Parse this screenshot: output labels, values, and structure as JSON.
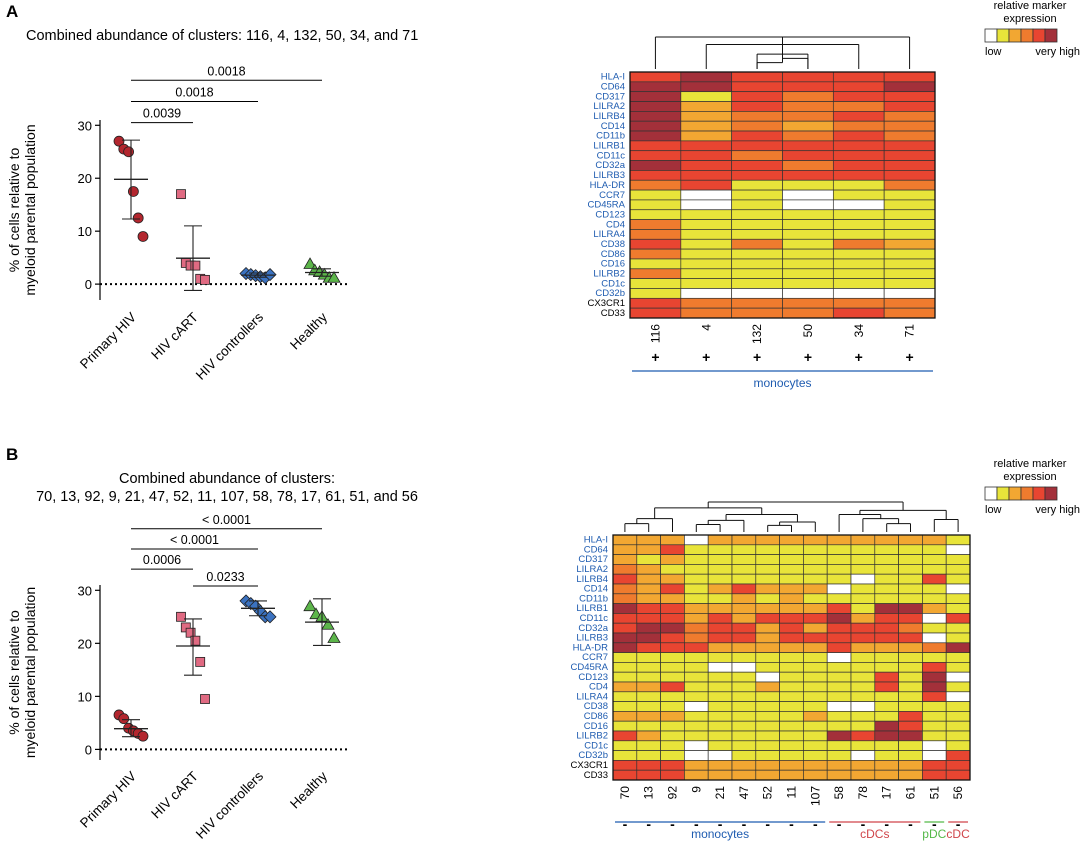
{
  "colors": {
    "palette": [
      "#ffffff",
      "#e8e43a",
      "#f2a732",
      "#ef7b2e",
      "#e84531",
      "#a3303a"
    ],
    "primary": "#b3262e",
    "cart": "#e06a82",
    "controllers": "#3b72c0",
    "healthy": "#5cb54a",
    "marker_blue": "#1f5cb0",
    "monocytes": "#1f5cb0",
    "cdc": "#d0454a",
    "pdc": "#54b948"
  },
  "legend": {
    "title_line1": "relative marker",
    "title_line2": "expression",
    "low": "low",
    "high": "very high"
  },
  "chart_data": [
    {
      "panel": "A",
      "type": "scatter",
      "title": "Combined abundance of clusters: 116, 4, 132, 50, 34, and 71",
      "ylabel_line1": "% of cells relative to",
      "ylabel_line2": "myeloid parental population",
      "ylim": [
        -3,
        31
      ],
      "yticks": [
        0,
        10,
        20,
        30
      ],
      "groups": [
        {
          "name": "Primary HIV",
          "marker": "circle",
          "color_key": "primary",
          "values": [
            27.0,
            25.5,
            25.0,
            17.5,
            12.5,
            9.0
          ],
          "mean": 19.8,
          "sd_low": 12.3,
          "sd_high": 27.2
        },
        {
          "name": "HIV cART",
          "marker": "square",
          "color_key": "cart",
          "values": [
            17.0,
            4.0,
            3.5,
            3.5,
            1.0,
            0.8
          ],
          "mean": 4.9,
          "sd_low": -1.2,
          "sd_high": 11.0
        },
        {
          "name": "HIV controllers",
          "marker": "diamond",
          "color_key": "controllers",
          "values": [
            2.0,
            1.8,
            1.6,
            1.4,
            1.2,
            1.8
          ],
          "mean": 1.7,
          "sd_low": 1.3,
          "sd_high": 2.1
        },
        {
          "name": "Healthy",
          "marker": "triangle",
          "color_key": "healthy",
          "values": [
            3.8,
            2.6,
            2.3,
            1.8,
            1.2,
            1.2
          ],
          "mean": 2.2,
          "sd_low": 1.5,
          "sd_high": 2.9
        }
      ],
      "comparisons": [
        {
          "from": 0,
          "to": 1,
          "p": "0.0039",
          "y": 30.5
        },
        {
          "from": 0,
          "to": 2,
          "p": "0.0018",
          "y": 34.5
        },
        {
          "from": 0,
          "to": 3,
          "p": "0.0018",
          "y": 38.5
        }
      ]
    },
    {
      "panel": "B",
      "type": "scatter",
      "title_line1": "Combined abundance of clusters:",
      "title_line2": "70, 13, 92, 9, 21, 47, 52, 11, 107, 58, 78, 17, 61, 51, and 56",
      "ylabel_line1": "% of cells relative to",
      "ylabel_line2": "myeloid parental population",
      "ylim": [
        -2,
        31
      ],
      "yticks": [
        0,
        10,
        20,
        30
      ],
      "groups": [
        {
          "name": "Primary HIV",
          "marker": "circle",
          "color_key": "primary",
          "values": [
            6.5,
            5.8,
            4.0,
            3.5,
            3.0,
            2.5
          ],
          "mean": 3.9,
          "sd_low": 2.4,
          "sd_high": 5.6
        },
        {
          "name": "HIV cART",
          "marker": "square",
          "color_key": "cart",
          "values": [
            25.0,
            23.0,
            22.0,
            20.5,
            16.5,
            9.5
          ],
          "mean": 19.5,
          "sd_low": 14.0,
          "sd_high": 24.6
        },
        {
          "name": "HIV controllers",
          "marker": "diamond",
          "color_key": "controllers",
          "values": [
            28.0,
            27.5,
            27.0,
            26.0,
            25.0,
            25.0
          ],
          "mean": 26.6,
          "sd_low": 25.2,
          "sd_high": 28.0
        },
        {
          "name": "Healthy",
          "marker": "triangle",
          "color_key": "healthy",
          "values": [
            27.0,
            25.5,
            25.0,
            23.5,
            21.0
          ],
          "mean": 24.0,
          "sd_low": 19.6,
          "sd_high": 28.4
        }
      ],
      "comparisons": [
        {
          "from": 0,
          "to": 1,
          "p": "0.0006",
          "y": 34.0
        },
        {
          "from": 1,
          "to": 2,
          "p": "0.0233",
          "y": 30.8
        },
        {
          "from": 0,
          "to": 2,
          "p": "< 0.0001",
          "y": 37.8
        },
        {
          "from": 0,
          "to": 3,
          "p": "< 0.0001",
          "y": 41.6
        }
      ]
    },
    {
      "panel": "A",
      "type": "heatmap",
      "rows": [
        "HLA-I",
        "CD64",
        "CD317",
        "LILRA2",
        "LILRB4",
        "CD14",
        "CD11b",
        "LILRB1",
        "CD11c",
        "CD32a",
        "LILRB3",
        "HLA-DR",
        "CCR7",
        "CD45RA",
        "CD123",
        "CD4",
        "LILRA4",
        "CD38",
        "CD86",
        "CD16",
        "LILRB2",
        "CD1c",
        "CD32b",
        "CX3CR1",
        "CD33"
      ],
      "row_colors": [
        "b",
        "b",
        "b",
        "b",
        "b",
        "b",
        "b",
        "b",
        "b",
        "b",
        "b",
        "b",
        "b",
        "b",
        "b",
        "b",
        "b",
        "b",
        "b",
        "b",
        "b",
        "b",
        "b",
        "k",
        "k"
      ],
      "columns": [
        "116",
        "4",
        "132",
        "50",
        "34",
        "71"
      ],
      "signs": [
        "+",
        "+",
        "+",
        "+",
        "+",
        "+"
      ],
      "groups": [
        {
          "label": "monocytes",
          "from": 0,
          "to": 5,
          "color_key": "monocytes"
        }
      ],
      "dendrogram": [
        [
          0,
          5,
          3
        ],
        [
          1,
          4,
          2.3
        ],
        [
          2,
          3,
          1.4
        ],
        [
          2,
          6,
          0.6
        ],
        [
          3,
          7,
          1.0
        ]
      ],
      "dendro_max": 3,
      "values": [
        [
          4,
          5,
          4,
          4,
          4,
          4
        ],
        [
          5,
          5,
          4,
          4,
          4,
          5
        ],
        [
          5,
          1,
          4,
          3,
          4,
          4
        ],
        [
          5,
          2,
          4,
          3,
          3,
          4
        ],
        [
          5,
          2,
          3,
          3,
          4,
          3
        ],
        [
          5,
          2,
          3,
          2,
          3,
          3
        ],
        [
          5,
          2,
          4,
          3,
          4,
          3
        ],
        [
          4,
          4,
          4,
          4,
          4,
          4
        ],
        [
          4,
          4,
          3,
          4,
          4,
          4
        ],
        [
          5,
          4,
          4,
          3,
          4,
          4
        ],
        [
          4,
          4,
          4,
          4,
          4,
          4
        ],
        [
          3,
          4,
          1,
          1,
          1,
          3
        ],
        [
          1,
          0,
          1,
          0,
          1,
          1
        ],
        [
          1,
          0,
          1,
          0,
          0,
          1
        ],
        [
          1,
          1,
          1,
          1,
          1,
          1
        ],
        [
          3,
          1,
          1,
          1,
          1,
          1
        ],
        [
          3,
          1,
          1,
          1,
          1,
          1
        ],
        [
          4,
          1,
          3,
          1,
          3,
          2
        ],
        [
          3,
          1,
          1,
          1,
          1,
          1
        ],
        [
          1,
          1,
          1,
          1,
          1,
          1
        ],
        [
          3,
          1,
          1,
          1,
          1,
          1
        ],
        [
          1,
          1,
          1,
          1,
          1,
          1
        ],
        [
          1,
          0,
          0,
          0,
          0,
          0
        ],
        [
          4,
          3,
          3,
          3,
          3,
          3
        ],
        [
          4,
          3,
          3,
          3,
          4,
          3
        ]
      ]
    },
    {
      "panel": "B",
      "type": "heatmap",
      "rows": [
        "HLA-I",
        "CD64",
        "CD317",
        "LILRA2",
        "LILRB4",
        "CD14",
        "CD11b",
        "LILRB1",
        "CD11c",
        "CD32a",
        "LILRB3",
        "HLA-DR",
        "CCR7",
        "CD45RA",
        "CD123",
        "CD4",
        "LILRA4",
        "CD38",
        "CD86",
        "CD16",
        "LILRB2",
        "CD1c",
        "CD32b",
        "CX3CR1",
        "CD33"
      ],
      "row_colors": [
        "b",
        "b",
        "b",
        "b",
        "b",
        "b",
        "b",
        "b",
        "b",
        "b",
        "b",
        "b",
        "b",
        "b",
        "b",
        "b",
        "b",
        "b",
        "b",
        "b",
        "b",
        "b",
        "b",
        "k",
        "k"
      ],
      "columns": [
        "70",
        "13",
        "92",
        "9",
        "21",
        "47",
        "52",
        "11",
        "107",
        "58",
        "78",
        "17",
        "61",
        "51",
        "56"
      ],
      "signs": [
        "-",
        "-",
        "-",
        "-",
        "-",
        "-",
        "-",
        "-",
        "-",
        "-",
        "-",
        "-",
        "-",
        "-",
        "-"
      ],
      "groups": [
        {
          "label": "monocytes",
          "from": 0,
          "to": 8,
          "color_key": "monocytes"
        },
        {
          "label": "cDCs",
          "from": 9,
          "to": 12,
          "color_key": "cdc"
        },
        {
          "label": "pDC",
          "from": 13,
          "to": 13,
          "color_key": "pdc"
        },
        {
          "label": "cDC",
          "from": 14,
          "to": 14,
          "color_key": "cdc"
        }
      ],
      "dendrogram": [
        [
          0,
          1,
          1.0
        ],
        [
          15,
          2,
          1.6
        ],
        [
          3,
          4,
          0.9
        ],
        [
          17,
          5,
          1.4
        ],
        [
          6,
          7,
          0.8
        ],
        [
          19,
          8,
          1.2
        ],
        [
          18,
          20,
          2.1
        ],
        [
          16,
          21,
          2.9
        ],
        [
          11,
          12,
          1.0
        ],
        [
          10,
          23,
          1.6
        ],
        [
          9,
          24,
          2.1
        ],
        [
          13,
          14,
          1.5
        ],
        [
          25,
          26,
          2.6
        ],
        [
          22,
          27,
          3.6
        ]
      ],
      "dendro_max": 3.6,
      "values": [
        [
          2,
          2,
          2,
          0,
          2,
          2,
          2,
          2,
          2,
          2,
          2,
          2,
          2,
          2,
          1
        ],
        [
          2,
          2,
          4,
          1,
          1,
          1,
          1,
          1,
          1,
          1,
          1,
          1,
          1,
          1,
          0
        ],
        [
          2,
          1,
          2,
          1,
          1,
          1,
          1,
          1,
          1,
          1,
          1,
          1,
          1,
          1,
          1
        ],
        [
          3,
          2,
          1,
          1,
          1,
          1,
          1,
          1,
          1,
          1,
          1,
          1,
          1,
          1,
          1
        ],
        [
          4,
          2,
          2,
          1,
          1,
          1,
          1,
          1,
          1,
          1,
          0,
          1,
          1,
          4,
          1
        ],
        [
          3,
          2,
          4,
          1,
          2,
          4,
          2,
          2,
          2,
          0,
          1,
          1,
          1,
          1,
          0
        ],
        [
          3,
          2,
          2,
          1,
          1,
          2,
          1,
          2,
          1,
          1,
          1,
          1,
          1,
          1,
          1
        ],
        [
          5,
          4,
          4,
          2,
          2,
          2,
          2,
          2,
          2,
          4,
          1,
          5,
          5,
          2,
          1
        ],
        [
          4,
          4,
          4,
          2,
          4,
          2,
          4,
          4,
          4,
          5,
          2,
          4,
          4,
          0,
          4
        ],
        [
          4,
          5,
          5,
          3,
          4,
          4,
          2,
          4,
          2,
          4,
          4,
          4,
          3,
          1,
          1
        ],
        [
          5,
          5,
          4,
          3,
          4,
          4,
          2,
          4,
          4,
          4,
          4,
          4,
          4,
          0,
          1
        ],
        [
          5,
          4,
          4,
          4,
          2,
          2,
          2,
          2,
          2,
          4,
          2,
          2,
          2,
          3,
          5
        ],
        [
          1,
          1,
          1,
          1,
          1,
          1,
          1,
          1,
          1,
          0,
          1,
          1,
          1,
          1,
          1
        ],
        [
          1,
          1,
          1,
          1,
          0,
          0,
          1,
          1,
          1,
          1,
          1,
          1,
          1,
          4,
          1
        ],
        [
          1,
          1,
          1,
          1,
          1,
          1,
          0,
          1,
          1,
          1,
          1,
          4,
          1,
          5,
          0
        ],
        [
          2,
          2,
          4,
          1,
          1,
          1,
          2,
          1,
          1,
          1,
          1,
          4,
          1,
          5,
          1
        ],
        [
          1,
          1,
          1,
          1,
          1,
          1,
          1,
          1,
          1,
          1,
          1,
          1,
          1,
          4,
          0
        ],
        [
          1,
          1,
          1,
          0,
          1,
          1,
          1,
          1,
          1,
          0,
          0,
          1,
          1,
          1,
          1
        ],
        [
          2,
          2,
          2,
          1,
          1,
          1,
          1,
          1,
          2,
          1,
          1,
          1,
          4,
          1,
          1
        ],
        [
          1,
          1,
          1,
          1,
          1,
          1,
          1,
          1,
          1,
          1,
          1,
          5,
          4,
          1,
          1
        ],
        [
          4,
          2,
          1,
          1,
          1,
          1,
          1,
          1,
          1,
          5,
          4,
          5,
          5,
          1,
          1
        ],
        [
          1,
          1,
          1,
          0,
          1,
          1,
          1,
          1,
          1,
          1,
          1,
          1,
          1,
          0,
          1
        ],
        [
          1,
          1,
          1,
          0,
          0,
          1,
          1,
          1,
          1,
          1,
          0,
          1,
          1,
          0,
          4
        ],
        [
          4,
          4,
          4,
          2,
          2,
          2,
          2,
          2,
          2,
          2,
          2,
          2,
          2,
          4,
          4
        ],
        [
          4,
          4,
          4,
          2,
          2,
          2,
          2,
          2,
          2,
          2,
          2,
          2,
          2,
          4,
          4
        ]
      ]
    }
  ]
}
